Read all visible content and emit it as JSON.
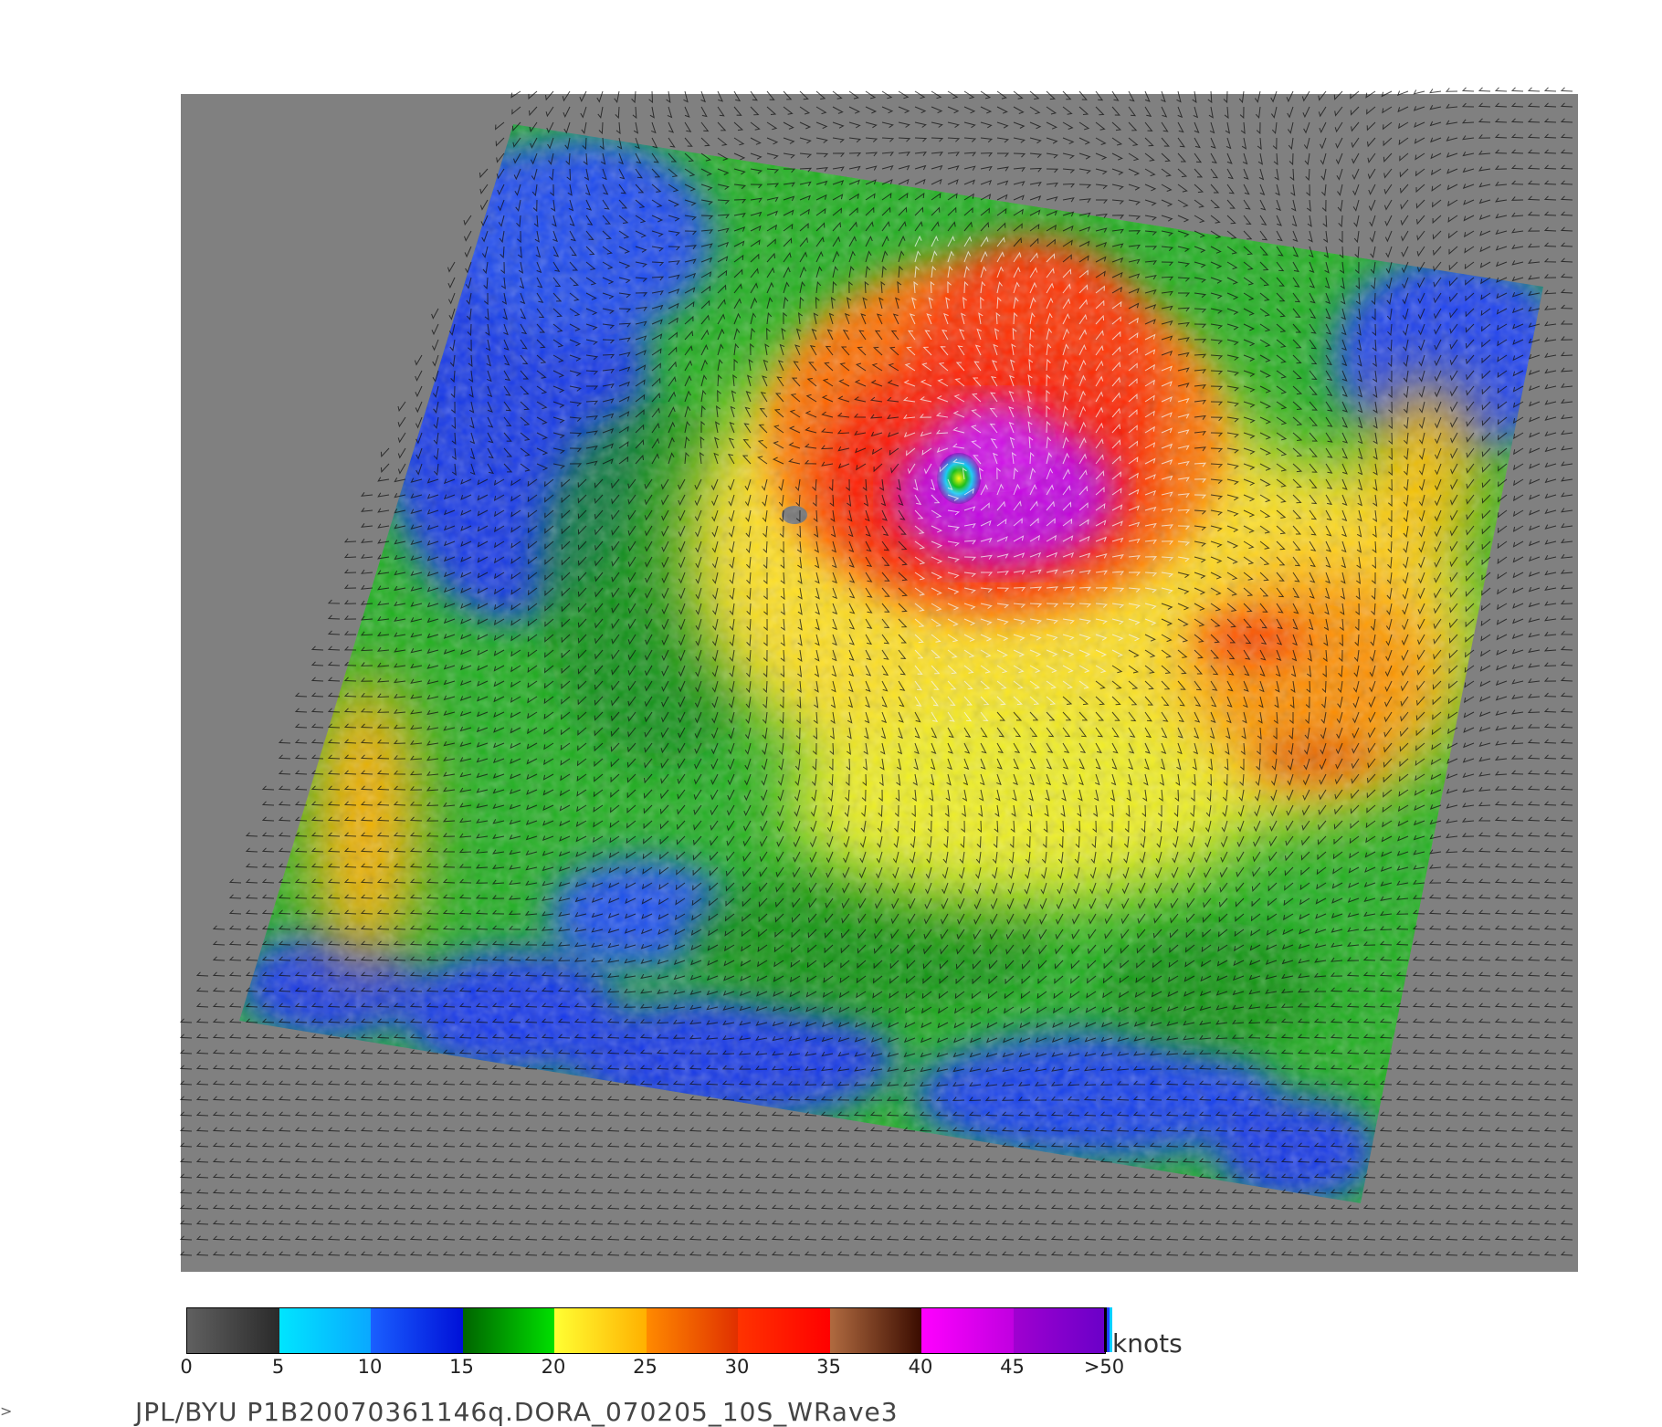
{
  "map": {
    "storm_name": "DORA",
    "background_color": "#808080",
    "vector_color_low": "#111111",
    "vector_color_high": "#f4f4f4"
  },
  "legend": {
    "unit": "knots",
    "ticks": [
      "0",
      "5",
      "10",
      "15",
      "20",
      "25",
      "30",
      "35",
      "40",
      "45",
      ">50"
    ],
    "bins": [
      {
        "from": 0,
        "to": 5,
        "colors": [
          "#2b2b2b",
          "#8a8a8a"
        ],
        "colors_rev": [
          "#606060",
          "#2a2a2a"
        ]
      },
      {
        "from": 5,
        "to": 10,
        "colors": [
          "#00e5ff",
          "#0aa8ff"
        ]
      },
      {
        "from": 10,
        "to": 15,
        "colors": [
          "#1a60ff",
          "#0010d8"
        ]
      },
      {
        "from": 15,
        "to": 20,
        "colors": [
          "#006400",
          "#00e000"
        ]
      },
      {
        "from": 20,
        "to": 25,
        "colors": [
          "#ffff33",
          "#ffb000"
        ]
      },
      {
        "from": 25,
        "to": 30,
        "colors": [
          "#ff8a00",
          "#e03000"
        ]
      },
      {
        "from": 30,
        "to": 35,
        "colors": [
          "#ff3300",
          "#ff0000"
        ]
      },
      {
        "from": 35,
        "to": 40,
        "colors": [
          "#b06a40",
          "#3a0c00"
        ]
      },
      {
        "from": 40,
        "to": 45,
        "colors": [
          "#ff00ff",
          "#c000e0"
        ]
      },
      {
        "from": 45,
        "to": 50,
        "colors": [
          "#a000d0",
          "#6a00c8"
        ]
      }
    ],
    "end_colors": [
      "#000000",
      "#2040ff",
      "#00d0ff"
    ]
  },
  "caption": "JPL/BYU  P1B20070361146q.DORA_070205_10S_WRave3",
  "corner_mark": ">"
}
